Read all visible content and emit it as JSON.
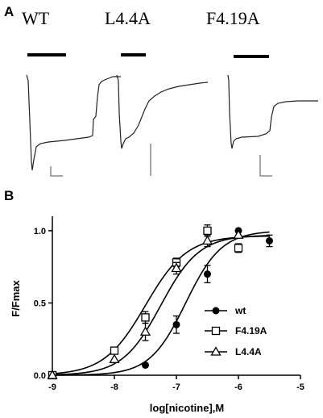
{
  "panel_a": {
    "label": "A",
    "traces": [
      {
        "name": "WT"
      },
      {
        "name": "L4.4A"
      },
      {
        "name": "F4.19A"
      }
    ]
  },
  "chart_data": {
    "type": "scatter",
    "panel_label": "B",
    "xlabel": "log[nicotine],M",
    "ylabel": "F/Fmax",
    "xlim": [
      -9,
      -5
    ],
    "ylim": [
      0,
      1.1
    ],
    "x_ticks": [
      -9,
      -8,
      -7,
      -6,
      -5
    ],
    "y_ticks": [
      0.0,
      0.5,
      1.0
    ],
    "x_tick_labels": [
      "-9",
      "-8",
      "-7",
      "-6",
      "-5"
    ],
    "y_tick_labels": [
      "0.0",
      "0.5",
      "1.0"
    ],
    "legend_position": "bottom-right",
    "series": [
      {
        "name": "wt",
        "marker": "filled-circle",
        "x": [
          -9,
          -7.5,
          -7,
          -6.5,
          -6,
          -5.5
        ],
        "y": [
          0.0,
          0.07,
          0.35,
          0.7,
          1.0,
          0.93
        ],
        "err": [
          0.0,
          0.0,
          0.06,
          0.06,
          0.0,
          0.04
        ],
        "fit": {
          "ec50_log": -6.85,
          "hill": 1.5,
          "top": 1.0
        }
      },
      {
        "name": "F4.19A",
        "marker": "open-square",
        "x": [
          -9,
          -8,
          -7.5,
          -7,
          -6.5,
          -6
        ],
        "y": [
          0.0,
          0.17,
          0.4,
          0.78,
          1.0,
          0.88
        ],
        "err": [
          0.0,
          0.0,
          0.04,
          0.03,
          0.04,
          0.03
        ],
        "fit": {
          "ec50_log": -7.5,
          "hill": 1.3,
          "top": 0.965
        }
      },
      {
        "name": "L4.4A",
        "marker": "open-triangle",
        "x": [
          -9,
          -8,
          -7.5,
          -7,
          -6.5,
          -6
        ],
        "y": [
          0.0,
          0.11,
          0.3,
          0.74,
          0.93,
          0.97
        ],
        "err": [
          0.0,
          0.0,
          0.06,
          0.04,
          0.04,
          0.0
        ],
        "fit": {
          "ec50_log": -7.25,
          "hill": 1.4,
          "top": 0.97
        }
      }
    ]
  }
}
